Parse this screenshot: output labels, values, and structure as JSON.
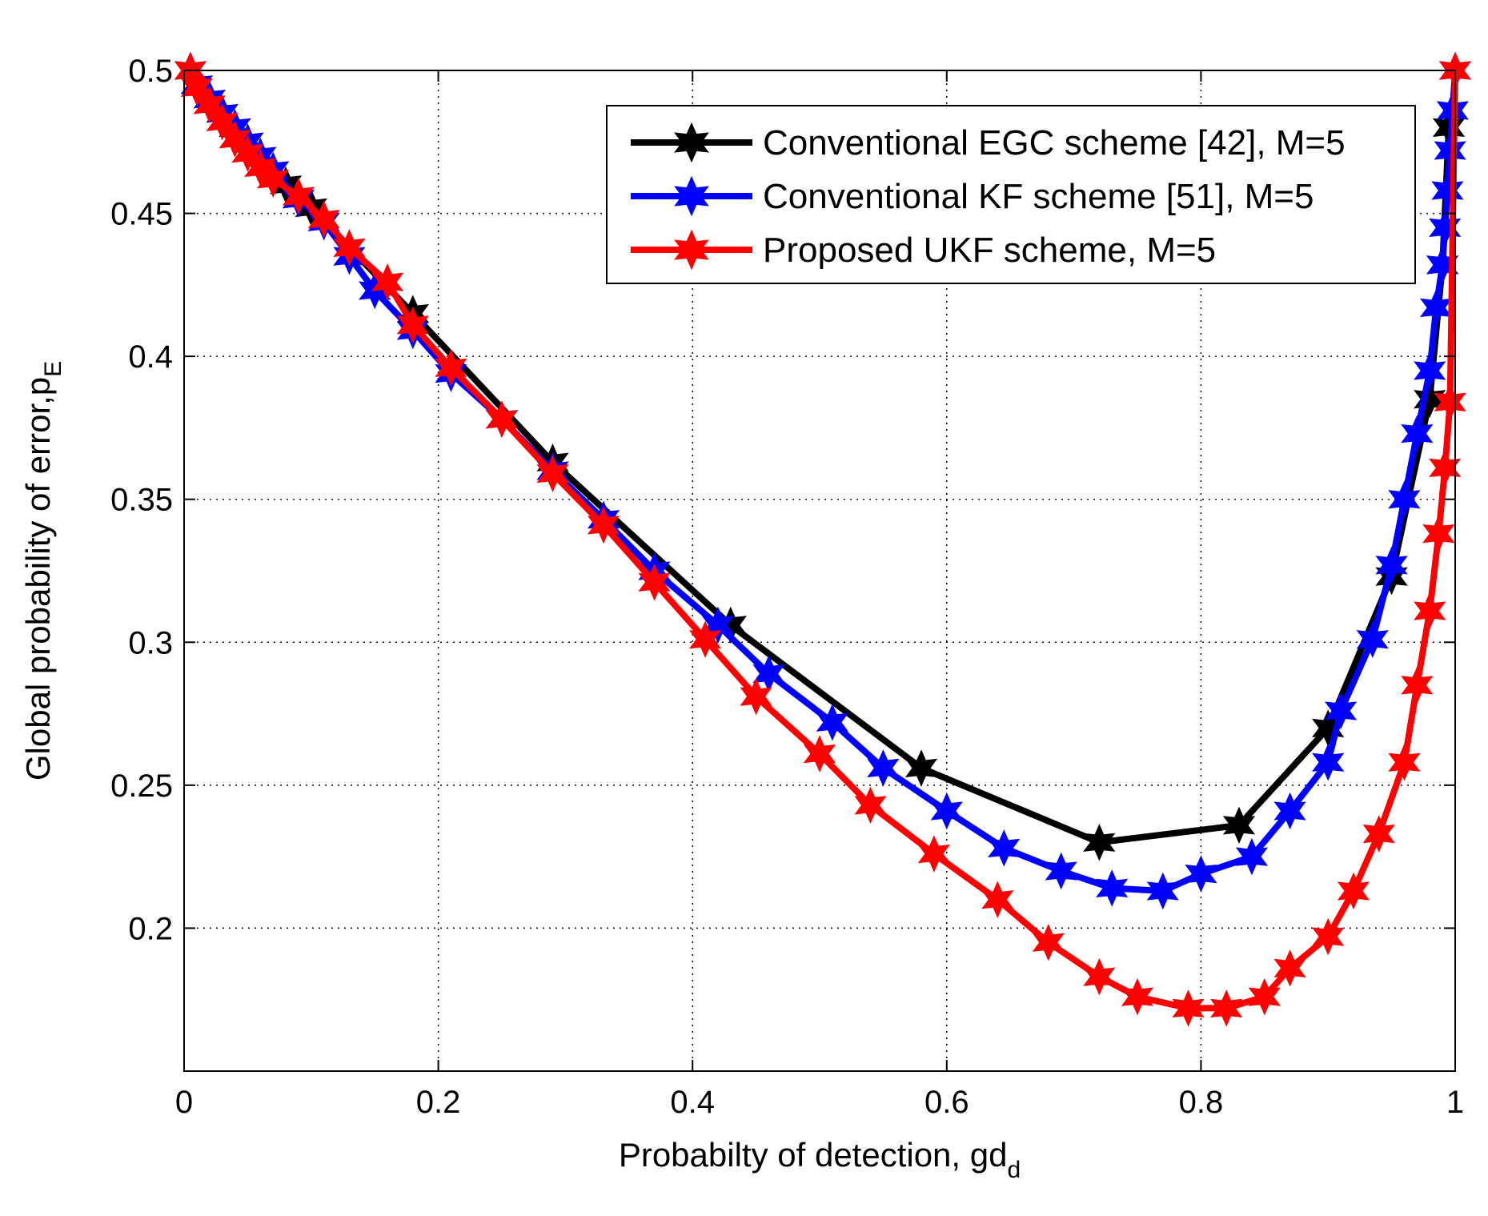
{
  "chart_data": {
    "type": "line",
    "title": "",
    "xlabel": "Probabilty of detection, gd",
    "xlabel_sub": "d",
    "ylabel": "Global probability of error,p",
    "ylabel_sub": "E",
    "xlim": [
      0,
      1
    ],
    "ylim": [
      0.15,
      0.5
    ],
    "xticks": [
      0,
      0.2,
      0.4,
      0.6,
      0.8,
      1
    ],
    "yticks": [
      0.2,
      0.25,
      0.3,
      0.35,
      0.4,
      0.45,
      0.5
    ],
    "xtick_labels": [
      "0",
      "0.2",
      "0.4",
      "0.6",
      "0.8",
      "1"
    ],
    "ytick_labels": [
      "0.2",
      "0.25",
      "0.3",
      "0.35",
      "0.4",
      "0.45",
      "0.5"
    ],
    "grid": true,
    "legend_position": "top-right",
    "series": [
      {
        "name": "Conventional EGC scheme [42], M=5",
        "color": "#000000",
        "x": [
          0.005,
          0.01,
          0.02,
          0.03,
          0.04,
          0.05,
          0.06,
          0.07,
          0.08,
          0.1,
          0.18,
          0.29,
          0.43,
          0.58,
          0.72,
          0.83,
          0.9,
          0.95,
          0.98,
          0.99,
          0.995
        ],
        "y": [
          0.5,
          0.495,
          0.49,
          0.485,
          0.48,
          0.475,
          0.47,
          0.465,
          0.46,
          0.452,
          0.415,
          0.363,
          0.306,
          0.256,
          0.23,
          0.236,
          0.27,
          0.323,
          0.385,
          0.432,
          0.48
        ]
      },
      {
        "name": "Conventional KF scheme [51], M=5",
        "color": "#0000ff",
        "x": [
          0.005,
          0.01,
          0.02,
          0.03,
          0.04,
          0.05,
          0.06,
          0.07,
          0.09,
          0.11,
          0.13,
          0.15,
          0.18,
          0.21,
          0.25,
          0.29,
          0.33,
          0.37,
          0.42,
          0.46,
          0.51,
          0.55,
          0.6,
          0.645,
          0.69,
          0.73,
          0.77,
          0.8,
          0.84,
          0.87,
          0.9,
          0.91,
          0.935,
          0.95,
          0.96,
          0.97,
          0.98,
          0.985,
          0.99,
          0.992,
          0.994,
          0.996,
          0.998,
          1.0
        ],
        "y": [
          0.5,
          0.495,
          0.49,
          0.485,
          0.48,
          0.475,
          0.47,
          0.465,
          0.455,
          0.447,
          0.435,
          0.423,
          0.409,
          0.394,
          0.378,
          0.36,
          0.343,
          0.325,
          0.306,
          0.289,
          0.272,
          0.256,
          0.241,
          0.228,
          0.22,
          0.214,
          0.213,
          0.219,
          0.225,
          0.241,
          0.258,
          0.276,
          0.301,
          0.327,
          0.35,
          0.373,
          0.395,
          0.417,
          0.432,
          0.445,
          0.458,
          0.472,
          0.486,
          0.5
        ]
      },
      {
        "name": "Proposed UKF scheme, M=5",
        "color": "#ff0000",
        "x": [
          0.005,
          0.01,
          0.02,
          0.03,
          0.04,
          0.05,
          0.06,
          0.07,
          0.09,
          0.11,
          0.13,
          0.16,
          0.18,
          0.21,
          0.25,
          0.29,
          0.33,
          0.37,
          0.41,
          0.45,
          0.5,
          0.54,
          0.59,
          0.64,
          0.68,
          0.72,
          0.75,
          0.79,
          0.82,
          0.85,
          0.87,
          0.9,
          0.92,
          0.94,
          0.96,
          0.97,
          0.98,
          0.987,
          0.992,
          0.996,
          1.0
        ],
        "y": [
          0.5,
          0.494,
          0.488,
          0.482,
          0.476,
          0.471,
          0.466,
          0.462,
          0.456,
          0.448,
          0.438,
          0.426,
          0.411,
          0.396,
          0.378,
          0.359,
          0.341,
          0.321,
          0.301,
          0.281,
          0.261,
          0.243,
          0.226,
          0.21,
          0.195,
          0.183,
          0.176,
          0.172,
          0.172,
          0.176,
          0.186,
          0.197,
          0.213,
          0.233,
          0.258,
          0.285,
          0.311,
          0.338,
          0.361,
          0.384,
          0.5
        ]
      }
    ]
  }
}
